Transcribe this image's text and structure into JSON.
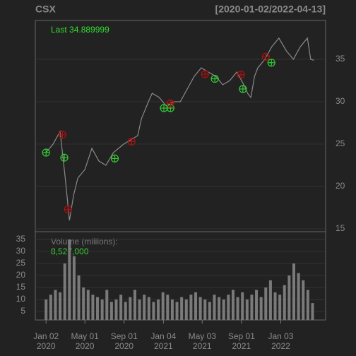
{
  "chart_data": {
    "type": "stock",
    "title": "CSX",
    "subtitle": "[2020-01-02/2022-04-13]",
    "last_label": "Last 34.889999",
    "volume_label": "Volume (millions):",
    "volume_last": "8,527,000",
    "xlim": [
      -23,
      598
    ],
    "xticks": [
      {
        "value": 0,
        "label": "Jan 02\n2020"
      },
      {
        "value": 83,
        "label": "May 01\n2020"
      },
      {
        "value": 167,
        "label": "Sep 01\n2020"
      },
      {
        "value": 251,
        "label": "Jan 04\n2021"
      },
      {
        "value": 334,
        "label": "May 03\n2021"
      },
      {
        "value": 418,
        "label": "Sep 01\n2021"
      },
      {
        "value": 502,
        "label": "Jan 03\n2022"
      }
    ],
    "ylim": [
      14.67,
      39.58
    ],
    "yticks": [
      15,
      20,
      25,
      30,
      35
    ],
    "y2lim": [
      1.47,
      38.24
    ],
    "y2ticks": [
      5,
      10,
      15,
      20,
      25,
      30,
      35
    ],
    "grid": true,
    "series": [
      {
        "name": "price",
        "color": "#8a8a8a",
        "x": [
          0,
          15,
          30,
          41,
          50,
          59,
          68,
          83,
          98,
          113,
          128,
          144,
          166,
          181,
          196,
          204,
          219,
          227,
          242,
          257,
          272,
          287,
          302,
          317,
          332,
          347,
          363,
          378,
          393,
          408,
          423,
          431,
          438,
          446,
          453,
          468,
          483,
          498,
          514,
          529,
          544,
          559,
          566,
          573
        ],
        "values": [
          24,
          25,
          26.5,
          21,
          16,
          19,
          21,
          22,
          24.5,
          23,
          22.5,
          24,
          25,
          25.5,
          26,
          28,
          30,
          31,
          30.5,
          29.5,
          30,
          30,
          31.5,
          33,
          34,
          33.5,
          33,
          32,
          32.5,
          33.5,
          32,
          31,
          30.5,
          33,
          34,
          35,
          36.5,
          37.5,
          36,
          35,
          36.5,
          37.5,
          35,
          34.889999
        ]
      },
      {
        "name": "buy",
        "color": "#33cc33",
        "x": [
          0,
          39,
          147,
          252,
          266,
          361,
          421,
          482
        ],
        "values": [
          24,
          23.4,
          23.3,
          29.25,
          29.25,
          32.7,
          31.5,
          34.6
        ]
      },
      {
        "name": "sell",
        "color": "#aa1111",
        "x": [
          35,
          47,
          183,
          266,
          340,
          417,
          470
        ],
        "values": [
          26.1,
          17.3,
          25.3,
          29.8,
          33.25,
          33.2,
          35.3
        ]
      },
      {
        "name": "volume",
        "color": "#7a7a7a",
        "axis": "y2",
        "x": [
          0,
          10,
          20,
          30,
          40,
          50,
          60,
          70,
          80,
          90,
          100,
          110,
          120,
          130,
          140,
          150,
          160,
          170,
          180,
          190,
          200,
          210,
          220,
          230,
          240,
          250,
          260,
          270,
          280,
          290,
          300,
          310,
          320,
          330,
          340,
          350,
          360,
          370,
          380,
          390,
          400,
          410,
          420,
          430,
          440,
          450,
          460,
          470,
          480,
          490,
          500,
          510,
          520,
          530,
          540,
          550,
          560,
          570
        ],
        "values": [
          10,
          12,
          14,
          13,
          25,
          35,
          28,
          20,
          15,
          14,
          12,
          11,
          10,
          14,
          9,
          10,
          12,
          9,
          11,
          14,
          10,
          12,
          11,
          9,
          10,
          13,
          12,
          10,
          9,
          11,
          10,
          12,
          13,
          11,
          10,
          9,
          12,
          11,
          10,
          12,
          14,
          11,
          13,
          10,
          12,
          14,
          11,
          15,
          18,
          13,
          12,
          16,
          20,
          25,
          21,
          18,
          14,
          8.5
        ]
      }
    ]
  }
}
